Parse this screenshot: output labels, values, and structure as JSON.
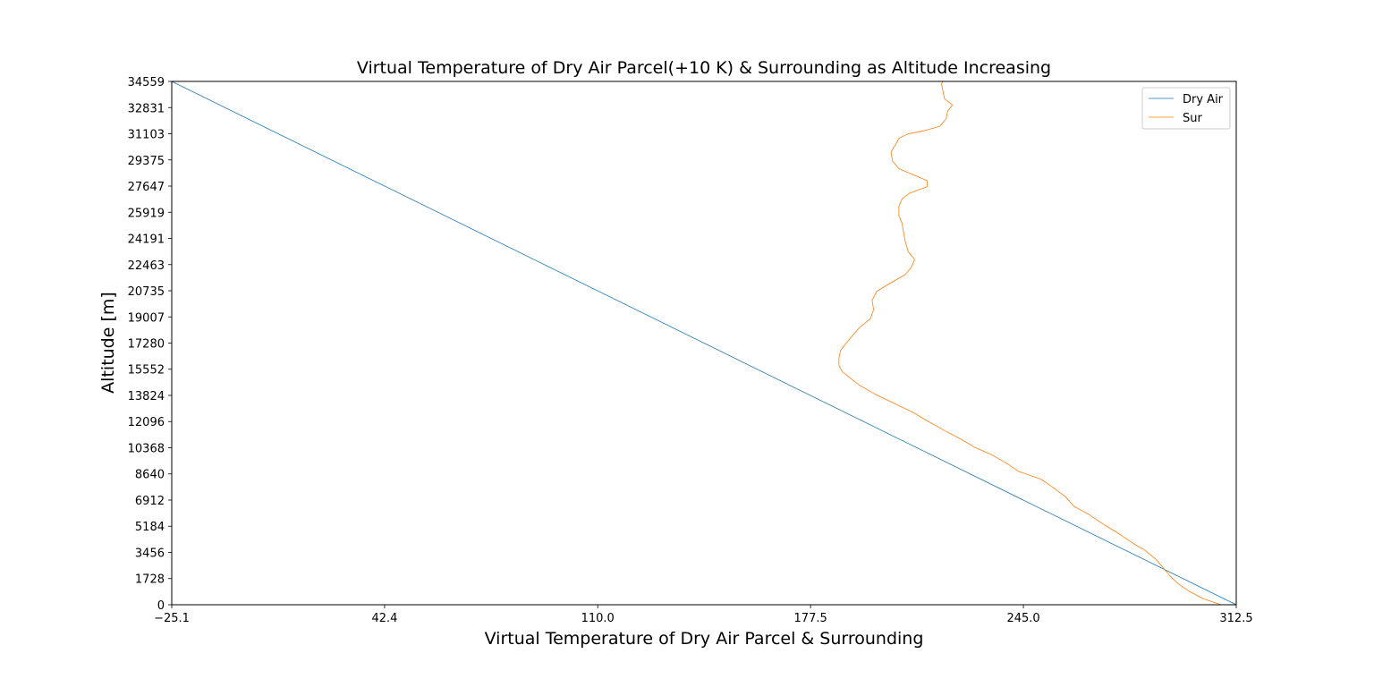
{
  "chart_data": {
    "type": "line",
    "title": "Virtual Temperature of Dry Air Parcel(+10 K) & Surrounding as Altitude Increasing",
    "xlabel": "Virtual Temperature of Dry Air Parcel & Surrounding",
    "ylabel": "Altitude [m]",
    "xlim": [
      -25.1,
      312.5
    ],
    "ylim": [
      0,
      34559
    ],
    "x_tick_labels": [
      "−25.1",
      "42.4",
      "110.0",
      "177.5",
      "245.0",
      "312.5"
    ],
    "x_ticks": [
      -25.1,
      42.4,
      110.0,
      177.5,
      245.0,
      312.5
    ],
    "y_ticks": [
      0,
      1728,
      3456,
      5184,
      6912,
      8640,
      10368,
      12096,
      13824,
      15552,
      17280,
      19007,
      20735,
      22463,
      24191,
      25919,
      27647,
      29375,
      31103,
      32831,
      34559
    ],
    "y_tick_labels": [
      "0",
      "1728",
      "3456",
      "5184",
      "6912",
      "8640",
      "10368",
      "12096",
      "13824",
      "15552",
      "17280",
      "19007",
      "20735",
      "22463",
      "24191",
      "25919",
      "27647",
      "29375",
      "31103",
      "32831",
      "34559"
    ],
    "grid": false,
    "legend": {
      "placement": "upper-right",
      "entries": [
        "Dry Air",
        "Sur"
      ]
    },
    "series": [
      {
        "name": "Dry Air",
        "color": "#1f77b4",
        "points": [
          [
            312.5,
            0
          ],
          [
            -25.1,
            34559
          ]
        ]
      },
      {
        "name": "Sur",
        "color": "#ff7f0e",
        "points": [
          [
            307.7,
            0
          ],
          [
            302.0,
            400
          ],
          [
            297.5,
            900
          ],
          [
            294.0,
            1400
          ],
          [
            291.5,
            1900
          ],
          [
            289.5,
            2400
          ],
          [
            287.0,
            3000
          ],
          [
            283.5,
            3600
          ],
          [
            281.0,
            3900
          ],
          [
            278.0,
            4300
          ],
          [
            274.5,
            4800
          ],
          [
            270.5,
            5300
          ],
          [
            265.5,
            6000
          ],
          [
            261.0,
            6500
          ],
          [
            258.5,
            7100
          ],
          [
            254.0,
            7800
          ],
          [
            250.5,
            8300
          ],
          [
            243.5,
            8800
          ],
          [
            240.0,
            9300
          ],
          [
            235.0,
            9900
          ],
          [
            229.5,
            10400
          ],
          [
            225.5,
            10900
          ],
          [
            220.0,
            11500
          ],
          [
            214.0,
            12200
          ],
          [
            210.0,
            12700
          ],
          [
            204.0,
            13300
          ],
          [
            198.0,
            13900
          ],
          [
            193.0,
            14500
          ],
          [
            190.5,
            14900
          ],
          [
            187.5,
            15400
          ],
          [
            186.5,
            15800
          ],
          [
            186.5,
            16300
          ],
          [
            187.0,
            16800
          ],
          [
            188.5,
            17200
          ],
          [
            190.5,
            17700
          ],
          [
            193.0,
            18300
          ],
          [
            196.5,
            18900
          ],
          [
            197.5,
            19500
          ],
          [
            197.0,
            20100
          ],
          [
            198.5,
            20700
          ],
          [
            202.5,
            21200
          ],
          [
            207.5,
            21800
          ],
          [
            209.5,
            22300
          ],
          [
            210.5,
            22800
          ],
          [
            208.5,
            23300
          ],
          [
            207.5,
            24000
          ],
          [
            207.0,
            24600
          ],
          [
            206.5,
            25200
          ],
          [
            205.5,
            25700
          ],
          [
            205.5,
            26300
          ],
          [
            206.5,
            26800
          ],
          [
            209.0,
            27200
          ],
          [
            214.5,
            27600
          ],
          [
            214.5,
            28000
          ],
          [
            210.0,
            28400
          ],
          [
            205.5,
            28800
          ],
          [
            203.5,
            29300
          ],
          [
            203.0,
            29900
          ],
          [
            204.5,
            30400
          ],
          [
            205.5,
            30800
          ],
          [
            208.5,
            31100
          ],
          [
            213.5,
            31300
          ],
          [
            218.5,
            31600
          ],
          [
            220.5,
            32100
          ],
          [
            221.0,
            32600
          ],
          [
            222.5,
            33000
          ],
          [
            220.0,
            33400
          ],
          [
            219.5,
            33900
          ],
          [
            219.0,
            34400
          ],
          [
            219.5,
            34559
          ]
        ]
      }
    ]
  }
}
